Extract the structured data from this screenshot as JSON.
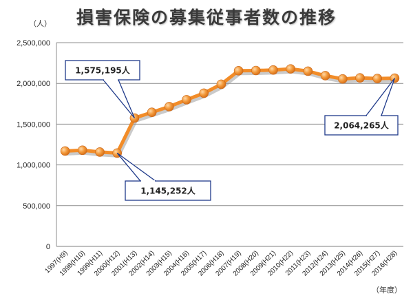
{
  "chart_data": {
    "type": "line",
    "title": "損害保険の募集従事者数の推移",
    "y_unit": "（人）",
    "x_unit": "（年度）",
    "ylim": [
      0,
      2500000
    ],
    "yticks": [
      "0",
      "500,000",
      "1,000,000",
      "1,500,000",
      "2,000,000",
      "2,500,000"
    ],
    "grid": true,
    "categories": [
      "1997(H9)",
      "1998(H10)",
      "1999(H11)",
      "2000(H12)",
      "2001(H13)",
      "2002(H14)",
      "2003(H15)",
      "2004(H16)",
      "2005(H17)",
      "2006(H18)",
      "2007(H19)",
      "2008(H20)",
      "2009(H21)",
      "2010(H22)",
      "2011(H23)",
      "2012(H24)",
      "2013(H25)",
      "2014(H26)",
      "2015(H27)",
      "2016(H28)"
    ],
    "values": [
      1170000,
      1180000,
      1158000,
      1145252,
      1575195,
      1645000,
      1715000,
      1800000,
      1880000,
      1990000,
      2155000,
      2158000,
      2165000,
      2178000,
      2150000,
      2095000,
      2055000,
      2068000,
      2060000,
      2064265
    ],
    "line_color": "#f28c28",
    "marker_color": "#f39a3c",
    "annotations": [
      {
        "text": "1,575,195人",
        "index": 4
      },
      {
        "text": "1,145,252人",
        "index": 3
      },
      {
        "text": "2,064,265人",
        "index": 19
      }
    ]
  }
}
